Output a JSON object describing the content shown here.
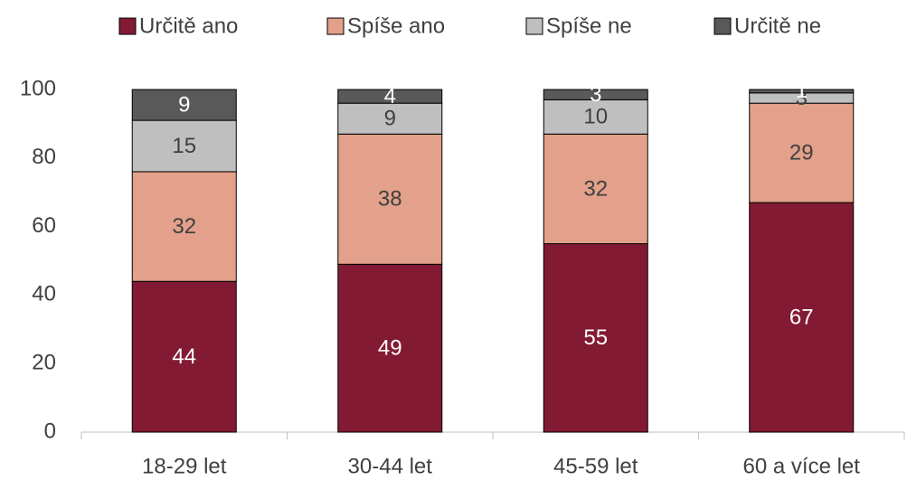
{
  "chart_data": {
    "type": "stacked_bar",
    "categories": [
      "18-29 let",
      "30-44 let",
      "45-59 let",
      "60 a více let"
    ],
    "series": [
      {
        "name": "Určitě ano",
        "color": "#821a34",
        "label_color": "#ffffff",
        "values": [
          44,
          49,
          55,
          67
        ]
      },
      {
        "name": "Spíše ano",
        "color": "#e3a08a",
        "label_color": "#404040",
        "values": [
          32,
          38,
          32,
          29
        ]
      },
      {
        "name": "Spíše ne",
        "color": "#bfbfbf",
        "label_color": "#404040",
        "values": [
          15,
          9,
          10,
          3
        ]
      },
      {
        "name": "Určitě ne",
        "color": "#595959",
        "label_color": "#ffffff",
        "values": [
          9,
          4,
          3,
          1
        ]
      }
    ],
    "ylim": [
      0,
      100
    ],
    "yticks": [
      0,
      20,
      40,
      60,
      80,
      100
    ],
    "grid": false,
    "legend": "top"
  }
}
